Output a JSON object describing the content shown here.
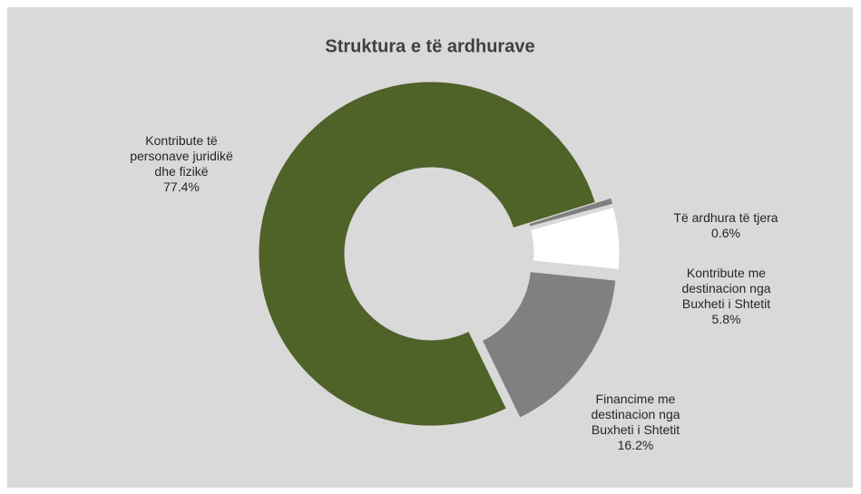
{
  "chart_data": {
    "type": "donut",
    "title": "Struktura e të ardhurave",
    "categories": [
      "Kontribute të personave juridikë dhe fizikë",
      "Të ardhura të tjera",
      "Kontribute me destinacion nga Buxheti i Shtetit",
      "Financime me destinacion nga Buxheti i Shtetit"
    ],
    "values": [
      77.4,
      0.6,
      5.8,
      16.2
    ],
    "value_labels": [
      "77.4%",
      "0.6%",
      "5.8%",
      "16.2%"
    ],
    "colors": [
      "#4f6228",
      "#7f7f7f",
      "#ffffff",
      "#808080"
    ]
  }
}
